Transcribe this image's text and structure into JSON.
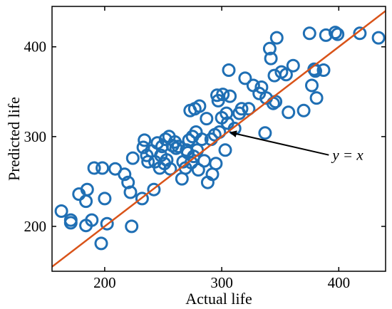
{
  "chart_data": {
    "type": "scatter",
    "xlabel": "Actual life",
    "ylabel": "Predicted life",
    "xlim": [
      155,
      440
    ],
    "ylim": [
      150,
      445
    ],
    "x_ticks": [
      200,
      300,
      400
    ],
    "y_ticks": [
      200,
      300,
      400
    ],
    "grid": false,
    "marker_color": "#1f6fb4",
    "line_color": "#d95319",
    "reference_line": {
      "equation": [
        155,
        440
      ],
      "label": "y = x"
    },
    "annotation": {
      "text": "y = x",
      "points_to": [
        306,
        306
      ],
      "text_at": [
        358,
        270
      ]
    },
    "series": [
      {
        "marker": "open-circle",
        "points": [
          [
            163,
            217
          ],
          [
            171,
            204
          ],
          [
            171,
            207
          ],
          [
            178,
            236
          ],
          [
            184,
            201
          ],
          [
            184,
            228
          ],
          [
            185,
            241
          ],
          [
            189,
            207
          ],
          [
            191,
            265
          ],
          [
            197,
            181
          ],
          [
            198,
            265
          ],
          [
            200,
            231
          ],
          [
            202,
            203
          ],
          [
            209,
            264
          ],
          [
            217,
            258
          ],
          [
            220,
            249
          ],
          [
            222,
            238
          ],
          [
            223,
            200
          ],
          [
            224,
            276
          ],
          [
            232,
            231
          ],
          [
            233,
            288
          ],
          [
            234,
            296
          ],
          [
            236,
            279
          ],
          [
            237,
            272
          ],
          [
            240,
            284
          ],
          [
            242,
            241
          ],
          [
            243,
            272
          ],
          [
            245,
            293
          ],
          [
            247,
            265
          ],
          [
            248,
            279
          ],
          [
            249,
            289
          ],
          [
            251,
            270
          ],
          [
            252,
            297
          ],
          [
            253,
            274
          ],
          [
            255,
            300
          ],
          [
            256,
            264
          ],
          [
            258,
            290
          ],
          [
            260,
            294
          ],
          [
            261,
            287
          ],
          [
            263,
            289
          ],
          [
            266,
            253
          ],
          [
            267,
            272
          ],
          [
            269,
            265
          ],
          [
            270,
            285
          ],
          [
            271,
            282
          ],
          [
            272,
            296
          ],
          [
            273,
            329
          ],
          [
            274,
            271
          ],
          [
            275,
            300
          ],
          [
            276,
            278
          ],
          [
            277,
            331
          ],
          [
            278,
            305
          ],
          [
            279,
            285
          ],
          [
            280,
            263
          ],
          [
            281,
            334
          ],
          [
            283,
            297
          ],
          [
            285,
            273
          ],
          [
            287,
            320
          ],
          [
            288,
            249
          ],
          [
            291,
            297
          ],
          [
            292,
            258
          ],
          [
            294,
            302
          ],
          [
            295,
            270
          ],
          [
            296,
            346
          ],
          [
            297,
            340
          ],
          [
            298,
            305
          ],
          [
            300,
            321
          ],
          [
            301,
            347
          ],
          [
            303,
            285
          ],
          [
            304,
            326
          ],
          [
            305,
            315
          ],
          [
            306,
            374
          ],
          [
            307,
            345
          ],
          [
            311,
            309
          ],
          [
            315,
            326
          ],
          [
            317,
            331
          ],
          [
            320,
            365
          ],
          [
            323,
            331
          ],
          [
            327,
            357
          ],
          [
            332,
            348
          ],
          [
            334,
            355
          ],
          [
            337,
            304
          ],
          [
            338,
            343
          ],
          [
            341,
            398
          ],
          [
            342,
            387
          ],
          [
            344,
            337
          ],
          [
            345,
            368
          ],
          [
            346,
            339
          ],
          [
            347,
            410
          ],
          [
            351,
            372
          ],
          [
            355,
            369
          ],
          [
            357,
            327
          ],
          [
            361,
            379
          ],
          [
            370,
            329
          ],
          [
            375,
            415
          ],
          [
            377,
            357
          ],
          [
            379,
            375
          ],
          [
            380,
            373
          ],
          [
            381,
            343
          ],
          [
            387,
            374
          ],
          [
            389,
            413
          ],
          [
            397,
            416
          ],
          [
            399,
            414
          ],
          [
            418,
            415
          ],
          [
            434,
            410
          ]
        ]
      }
    ]
  }
}
